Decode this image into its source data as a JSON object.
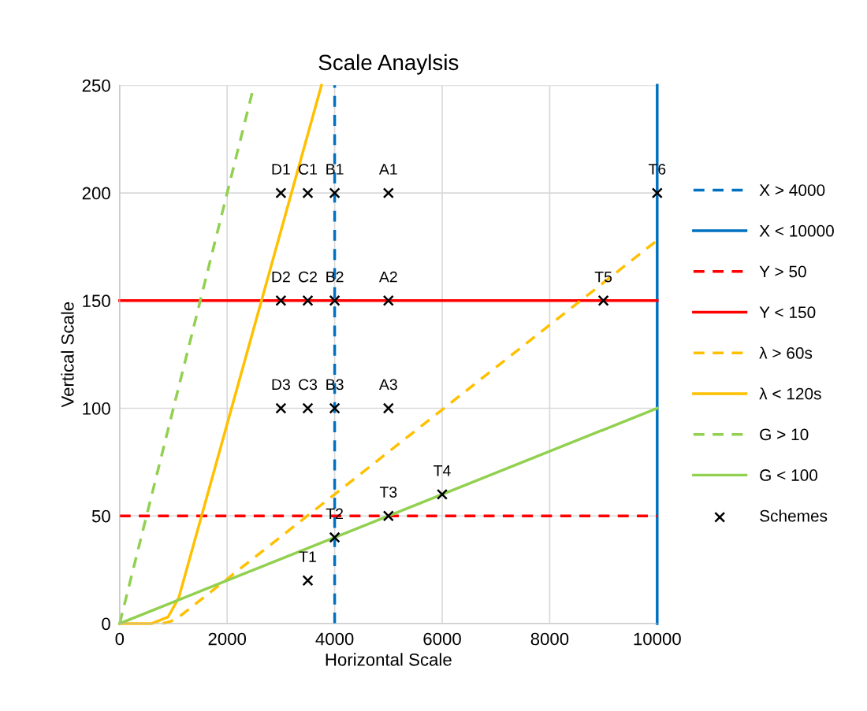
{
  "chart_data": {
    "type": "line",
    "title": "Scale Anaylsis",
    "xlabel": "Horizontal Scale",
    "ylabel": "Vertical Scale",
    "xlim": [
      0,
      10000
    ],
    "xticks": [
      0,
      2000,
      4000,
      6000,
      8000,
      10000
    ],
    "ylim": [
      0,
      250
    ],
    "yticks": [
      0,
      50,
      100,
      150,
      200,
      250
    ],
    "grid": true,
    "legend": "right",
    "series": [
      {
        "name": "X > 4000",
        "color": "#0070c0",
        "line_style": "dashed",
        "x": [
          4000,
          4000
        ],
        "values": [
          0,
          250
        ]
      },
      {
        "name": "X < 10000",
        "color": "#0070c0",
        "line_style": "solid",
        "x": [
          10000,
          10000
        ],
        "values": [
          0,
          250
        ]
      },
      {
        "name": "Y > 50",
        "color": "#ff0000",
        "line_style": "dashed",
        "x": [
          0,
          10000
        ],
        "values": [
          50,
          50
        ]
      },
      {
        "name": "Y < 150",
        "color": "#ff0000",
        "line_style": "solid",
        "x": [
          0,
          10000
        ],
        "values": [
          150,
          150
        ]
      },
      {
        "name": "λ > 60s",
        "color": "#ffc000",
        "line_style": "dashed",
        "x": [
          800,
          950,
          1100,
          10000
        ],
        "values": [
          0,
          1,
          3,
          178
        ]
      },
      {
        "name": "λ < 120s",
        "color": "#ffc000",
        "line_style": "solid",
        "x": [
          0,
          600,
          900,
          1100,
          3754
        ],
        "values": [
          0,
          0,
          3,
          12,
          250
        ]
      },
      {
        "name": "G > 10",
        "color": "#92d050",
        "line_style": "dashed",
        "x": [
          0,
          2500
        ],
        "values": [
          0,
          250
        ]
      },
      {
        "name": "G < 100",
        "color": "#92d050",
        "line_style": "solid",
        "x": [
          0,
          10000
        ],
        "values": [
          0,
          100
        ]
      },
      {
        "name": "Schemes",
        "type": "scatter",
        "marker": "cross",
        "color": "#000000",
        "x": [
          3000,
          3500,
          4000,
          5000,
          3000,
          3500,
          4000,
          5000,
          3000,
          3500,
          4000,
          5000,
          3500,
          4000,
          5000,
          6000,
          9000,
          10000
        ],
        "values": [
          200,
          200,
          200,
          200,
          150,
          150,
          150,
          150,
          100,
          100,
          100,
          100,
          20,
          40,
          50,
          60,
          150,
          200
        ]
      }
    ],
    "annotations": [
      {
        "text": "D1",
        "x": 3000,
        "y": 200
      },
      {
        "text": "C1",
        "x": 3500,
        "y": 200
      },
      {
        "text": "B1",
        "x": 4000,
        "y": 200
      },
      {
        "text": "A1",
        "x": 5000,
        "y": 200
      },
      {
        "text": "D2",
        "x": 3000,
        "y": 150
      },
      {
        "text": "C2",
        "x": 3500,
        "y": 150
      },
      {
        "text": "B2",
        "x": 4000,
        "y": 150
      },
      {
        "text": "A2",
        "x": 5000,
        "y": 150
      },
      {
        "text": "D3",
        "x": 3000,
        "y": 100
      },
      {
        "text": "C3",
        "x": 3500,
        "y": 100
      },
      {
        "text": "B3",
        "x": 4000,
        "y": 100
      },
      {
        "text": "A3",
        "x": 5000,
        "y": 100
      },
      {
        "text": "T1",
        "x": 3500,
        "y": 20
      },
      {
        "text": "T2",
        "x": 4000,
        "y": 40
      },
      {
        "text": "T3",
        "x": 5000,
        "y": 50
      },
      {
        "text": "T4",
        "x": 6000,
        "y": 60
      },
      {
        "text": "T5",
        "x": 9000,
        "y": 150
      },
      {
        "text": "T6",
        "x": 10000,
        "y": 200
      }
    ]
  }
}
